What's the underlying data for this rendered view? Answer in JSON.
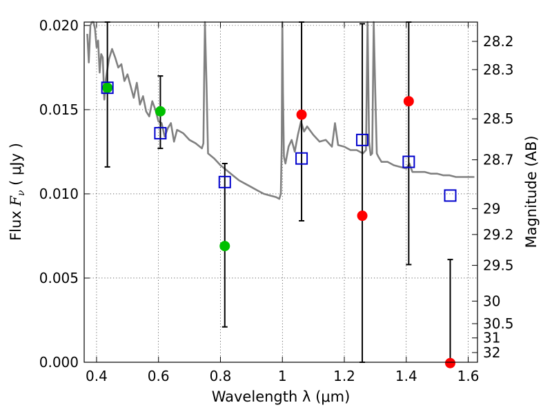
{
  "chart_data": {
    "type": "scatter",
    "title": "",
    "xlabel": "Wavelength  λ (μm)",
    "ylabel": "Flux  F_ν  ( μJy )",
    "ylabel_parts": {
      "prefix": "Flux ",
      "symbol": "F",
      "subscript": "ν",
      "suffix": " ( μJy )"
    },
    "y2label": "Magnitude (AB)",
    "xlim": [
      0.36,
      1.63
    ],
    "ylim": [
      0.0,
      0.0202
    ],
    "grid": true,
    "x_ticks": [
      0.4,
      0.6,
      0.8,
      1.0,
      1.2,
      1.4,
      1.6
    ],
    "x_tick_labels": [
      "0.4",
      "0.6",
      "0.8",
      "1",
      "1.2",
      "1.4",
      "1.6"
    ],
    "y_ticks": [
      0.0,
      0.005,
      0.01,
      0.015,
      0.02
    ],
    "y_tick_labels": [
      "0.000",
      "0.005",
      "0.010",
      "0.015",
      "0.020"
    ],
    "magnitude_ticks": [
      {
        "label": "28.2",
        "mag": 28.2
      },
      {
        "label": "28.3",
        "mag": 28.3
      },
      {
        "label": "28.5",
        "mag": 28.5
      },
      {
        "label": "28.7",
        "mag": 28.7
      },
      {
        "label": "29",
        "mag": 29.0
      },
      {
        "label": "29.2",
        "mag": 29.2
      },
      {
        "label": "29.5",
        "mag": 29.5
      },
      {
        "label": "30",
        "mag": 30.0
      },
      {
        "label": "30.5",
        "mag": 30.5
      },
      {
        "label": "31",
        "mag": 31.0
      },
      {
        "label": "32",
        "mag": 32.0
      }
    ],
    "series": [
      {
        "kind": "line",
        "color": "#808080",
        "x": [
          0.37,
          0.375,
          0.38,
          0.385,
          0.39,
          0.395,
          0.4,
          0.405,
          0.41,
          0.415,
          0.42,
          0.425,
          0.43,
          0.44,
          0.45,
          0.46,
          0.47,
          0.48,
          0.49,
          0.5,
          0.51,
          0.52,
          0.53,
          0.54,
          0.55,
          0.56,
          0.57,
          0.58,
          0.59,
          0.6,
          0.61,
          0.62,
          0.63,
          0.64,
          0.65,
          0.66,
          0.67,
          0.68,
          0.69,
          0.7,
          0.72,
          0.74,
          0.745,
          0.748,
          0.75,
          0.755,
          0.76,
          0.78,
          0.8,
          0.82,
          0.84,
          0.86,
          0.88,
          0.9,
          0.92,
          0.94,
          0.96,
          0.98,
          0.99,
          0.995,
          0.998,
          1.0,
          1.002,
          1.005,
          1.01,
          1.02,
          1.03,
          1.04,
          1.05,
          1.06,
          1.07,
          1.08,
          1.1,
          1.12,
          1.14,
          1.16,
          1.17,
          1.18,
          1.2,
          1.22,
          1.24,
          1.26,
          1.27,
          1.275,
          1.28,
          1.285,
          1.29,
          1.295,
          1.3,
          1.305,
          1.31,
          1.32,
          1.34,
          1.36,
          1.38,
          1.4,
          1.41,
          1.42,
          1.44,
          1.46,
          1.48,
          1.5,
          1.52,
          1.54,
          1.56,
          1.58,
          1.6,
          1.62
        ],
        "y": [
          0.0195,
          0.0178,
          0.02,
          0.021,
          0.021,
          0.0198,
          0.0187,
          0.0191,
          0.0172,
          0.0183,
          0.0181,
          0.0156,
          0.0168,
          0.018,
          0.0186,
          0.0181,
          0.0175,
          0.0177,
          0.0167,
          0.0171,
          0.0164,
          0.0157,
          0.0166,
          0.0153,
          0.0158,
          0.0149,
          0.0146,
          0.0155,
          0.015,
          0.0143,
          0.0142,
          0.0134,
          0.0139,
          0.0142,
          0.0131,
          0.0138,
          0.0137,
          0.0136,
          0.0134,
          0.0132,
          0.013,
          0.0127,
          0.013,
          0.0175,
          0.021,
          0.0165,
          0.0124,
          0.0121,
          0.0117,
          0.0114,
          0.0111,
          0.0108,
          0.0106,
          0.0104,
          0.0102,
          0.01,
          0.0099,
          0.0098,
          0.0097,
          0.01,
          0.013,
          0.021,
          0.016,
          0.0122,
          0.0118,
          0.0128,
          0.0132,
          0.0125,
          0.0135,
          0.0143,
          0.0137,
          0.014,
          0.0135,
          0.0131,
          0.0132,
          0.0128,
          0.0142,
          0.0129,
          0.0128,
          0.0126,
          0.0126,
          0.0124,
          0.0126,
          0.021,
          0.0131,
          0.0123,
          0.0124,
          0.021,
          0.016,
          0.0124,
          0.0122,
          0.0119,
          0.0119,
          0.0117,
          0.0116,
          0.0115,
          0.0118,
          0.0113,
          0.0113,
          0.0113,
          0.0112,
          0.0112,
          0.0111,
          0.0111,
          0.011,
          0.011,
          0.011,
          0.011
        ]
      },
      {
        "name": "",
        "kind": "scatter",
        "marker": "circle",
        "points": [
          {
            "x": 0.435,
            "y": 0.0163,
            "color": "#00c000"
          },
          {
            "x": 0.606,
            "y": 0.0149,
            "color": "#00c000"
          },
          {
            "x": 0.814,
            "y": 0.0069,
            "color": "#00c000"
          },
          {
            "x": 1.062,
            "y": 0.0147,
            "color": "#ff0000"
          },
          {
            "x": 1.258,
            "y": 0.0087,
            "color": "#ff0000"
          },
          {
            "x": 1.408,
            "y": 0.0155,
            "color": "#ff0000"
          },
          {
            "x": 1.542,
            "y": -5e-05,
            "color": "#ff0000"
          }
        ]
      },
      {
        "kind": "errorbar",
        "color": "#000000",
        "bars": [
          {
            "x": 0.435,
            "low": 0.0116,
            "high": 0.0202
          },
          {
            "x": 0.606,
            "low": 0.0127,
            "high": 0.017
          },
          {
            "x": 0.814,
            "low": 0.0021,
            "high": 0.0118
          },
          {
            "x": 1.062,
            "low": 0.0084,
            "high": 0.0202
          },
          {
            "x": 1.258,
            "low": 0.0,
            "high": 0.0201
          },
          {
            "x": 1.408,
            "low": 0.0058,
            "high": 0.0202
          },
          {
            "x": 1.542,
            "low": 0.0,
            "high": 0.0061
          }
        ]
      },
      {
        "kind": "scatter",
        "marker": "open-square",
        "color": "#0000cc",
        "points": [
          {
            "x": 0.435,
            "y": 0.0163
          },
          {
            "x": 0.606,
            "y": 0.0136
          },
          {
            "x": 0.814,
            "y": 0.0107
          },
          {
            "x": 1.062,
            "y": 0.0121
          },
          {
            "x": 1.258,
            "y": 0.0132
          },
          {
            "x": 1.408,
            "y": 0.0119
          },
          {
            "x": 1.542,
            "y": 0.0099
          }
        ]
      }
    ]
  }
}
